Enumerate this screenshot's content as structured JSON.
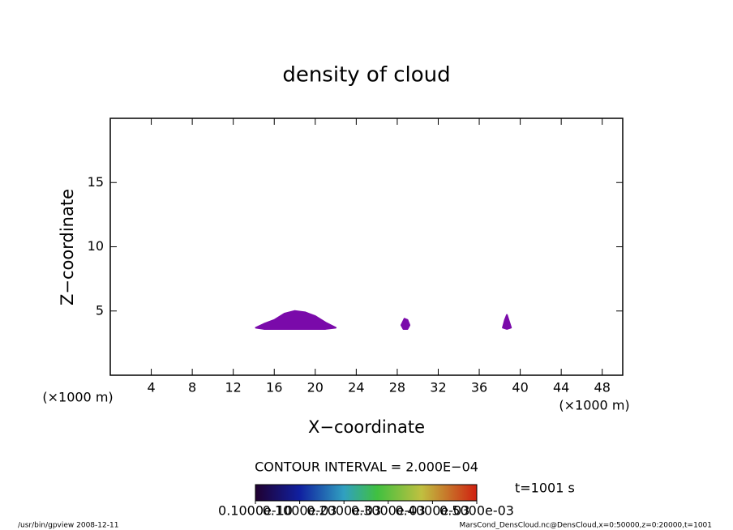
{
  "chart_data": {
    "type": "contour",
    "title": "density of cloud",
    "x_label": "X−coordinate",
    "y_label": "Z−coordinate",
    "x_unit": "(×1000 m)",
    "y_unit": "(×1000 m)",
    "xlim": [
      0,
      50
    ],
    "xticks": [
      4,
      8,
      12,
      16,
      20,
      24,
      28,
      32,
      36,
      40,
      44,
      48
    ],
    "ylim": [
      0,
      20
    ],
    "yticks": [
      5,
      10,
      15
    ],
    "color": "#7a0aaa",
    "regions": [
      {
        "x": [
          14.2,
          15,
          16,
          17,
          18,
          19,
          20,
          21,
          22,
          21,
          15
        ],
        "y": [
          3.7,
          4.0,
          4.3,
          4.8,
          5.0,
          4.9,
          4.6,
          4.1,
          3.7,
          3.6,
          3.6
        ]
      },
      {
        "x": [
          28.4,
          28.7,
          29.0,
          29.2,
          29.0,
          28.6
        ],
        "y": [
          3.9,
          4.4,
          4.3,
          3.9,
          3.6,
          3.6
        ]
      },
      {
        "x": [
          38.3,
          38.5,
          38.7,
          38.9,
          39.1,
          38.7
        ],
        "y": [
          3.7,
          4.3,
          4.7,
          4.2,
          3.7,
          3.6
        ]
      }
    ],
    "contour_interval": "CONTOUR INTERVAL = 2.000E−04",
    "time_label": "t=1001 s",
    "colorbar_lim": [
      0,
      0.0005
    ],
    "colorbar_ticks": [
      {
        "value": 1e-11,
        "label": "0.1000e-10"
      },
      {
        "value": 0.0001,
        "label": "0.1000e-03"
      },
      {
        "value": 0.0002,
        "label": "0.2000e-03"
      },
      {
        "value": 0.0003,
        "label": "0.3000e-03"
      },
      {
        "value": 0.0004,
        "label": "0.4000e-03"
      },
      {
        "value": 0.0005,
        "label": "0.5000e-03"
      }
    ],
    "footer_left": "/usr/bin/gpview   2008-12-11",
    "footer_right": "MarsCond_DensCloud.nc@DensCloud,x=0:50000,z=0:20000,t=1001"
  }
}
